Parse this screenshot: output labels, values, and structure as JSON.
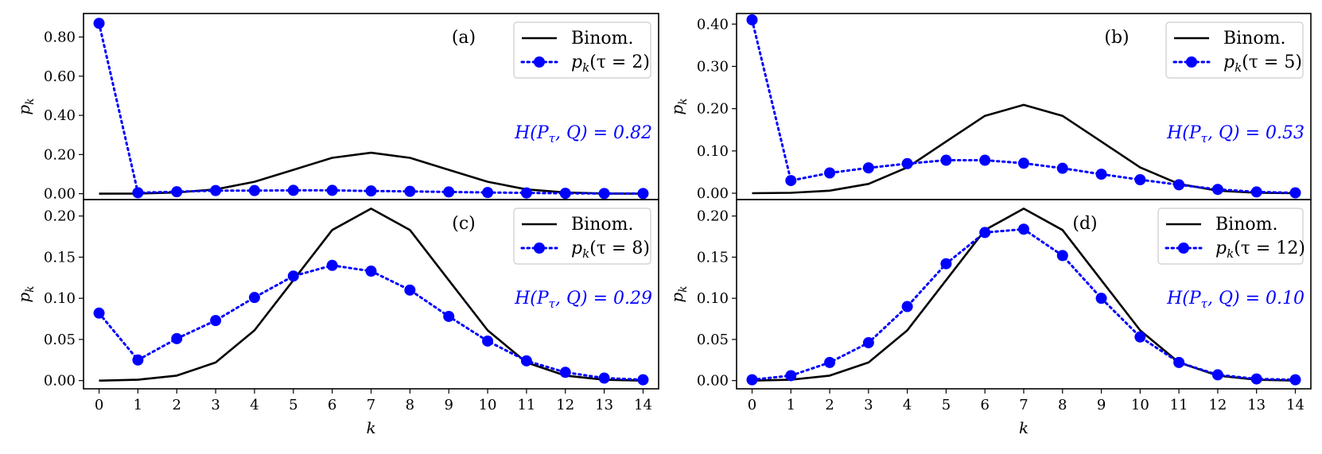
{
  "colors": {
    "binom": "#000000",
    "pk": "#0000ff",
    "axis": "#000000",
    "legend_border": "#cccccc"
  },
  "chart_data": [
    {
      "type": "line",
      "panel_label": "(a)",
      "x": [
        0,
        1,
        2,
        3,
        4,
        5,
        6,
        7,
        8,
        9,
        10,
        11,
        12,
        13,
        14
      ],
      "ylim": [
        -0.03,
        0.92
      ],
      "yticks": [
        0.0,
        0.2,
        0.4,
        0.6,
        0.8
      ],
      "ytick_labels": [
        "0.00",
        "0.20",
        "0.40",
        "0.60",
        "0.80"
      ],
      "xticks": [],
      "ylabel": "p_k",
      "xlabel": "",
      "series": [
        {
          "name": "Binom.",
          "style": "solid",
          "values": [
            0.0,
            0.001,
            0.006,
            0.022,
            0.061,
            0.122,
            0.183,
            0.209,
            0.183,
            0.122,
            0.061,
            0.022,
            0.006,
            0.001,
            0.0
          ]
        },
        {
          "name": "p_k(τ = 2)",
          "style": "dotted-marker",
          "values": [
            0.87,
            0.005,
            0.01,
            0.016,
            0.016,
            0.017,
            0.017,
            0.014,
            0.012,
            0.009,
            0.006,
            0.004,
            0.002,
            0.001,
            0.001
          ]
        }
      ],
      "legend": {
        "binom_label": "Binom.",
        "pk_prefix": "p",
        "pk_sub": "k",
        "pk_arg": "(τ = 2)"
      },
      "entropy": {
        "text": "H(P",
        "sub": "τ",
        "rest": ", Q) = 0.82"
      }
    },
    {
      "type": "line",
      "panel_label": "(b)",
      "x": [
        0,
        1,
        2,
        3,
        4,
        5,
        6,
        7,
        8,
        9,
        10,
        11,
        12,
        13,
        14
      ],
      "ylim": [
        -0.015,
        0.425
      ],
      "yticks": [
        0.0,
        0.1,
        0.2,
        0.3,
        0.4
      ],
      "ytick_labels": [
        "0.00",
        "0.10",
        "0.20",
        "0.30",
        "0.40"
      ],
      "xticks": [],
      "ylabel": "p_k",
      "xlabel": "",
      "series": [
        {
          "name": "Binom.",
          "style": "solid",
          "values": [
            0.0,
            0.001,
            0.006,
            0.022,
            0.061,
            0.122,
            0.183,
            0.209,
            0.183,
            0.122,
            0.061,
            0.022,
            0.006,
            0.001,
            0.0
          ]
        },
        {
          "name": "p_k(τ = 5)",
          "style": "dotted-marker",
          "values": [
            0.41,
            0.03,
            0.048,
            0.06,
            0.07,
            0.078,
            0.078,
            0.071,
            0.059,
            0.045,
            0.032,
            0.02,
            0.009,
            0.003,
            0.001
          ]
        }
      ],
      "legend": {
        "binom_label": "Binom.",
        "pk_prefix": "p",
        "pk_sub": "k",
        "pk_arg": "(τ = 5)"
      },
      "entropy": {
        "text": "H(P",
        "sub": "τ",
        "rest": ", Q) = 0.53"
      }
    },
    {
      "type": "line",
      "panel_label": "(c)",
      "x": [
        0,
        1,
        2,
        3,
        4,
        5,
        6,
        7,
        8,
        9,
        10,
        11,
        12,
        13,
        14
      ],
      "ylim": [
        -0.01,
        0.22
      ],
      "yticks": [
        0.0,
        0.05,
        0.1,
        0.15,
        0.2
      ],
      "ytick_labels": [
        "0.00",
        "0.05",
        "0.10",
        "0.15",
        "0.20"
      ],
      "xticks": [
        0,
        1,
        2,
        3,
        4,
        5,
        6,
        7,
        8,
        9,
        10,
        11,
        12,
        13,
        14
      ],
      "ylabel": "p_k",
      "xlabel": "k",
      "series": [
        {
          "name": "Binom.",
          "style": "solid",
          "values": [
            0.0,
            0.001,
            0.006,
            0.022,
            0.061,
            0.122,
            0.183,
            0.209,
            0.183,
            0.122,
            0.061,
            0.022,
            0.006,
            0.001,
            0.0
          ]
        },
        {
          "name": "p_k(τ = 8)",
          "style": "dotted-marker",
          "values": [
            0.082,
            0.025,
            0.051,
            0.073,
            0.101,
            0.127,
            0.14,
            0.133,
            0.11,
            0.078,
            0.048,
            0.024,
            0.01,
            0.003,
            0.001
          ]
        }
      ],
      "legend": {
        "binom_label": "Binom.",
        "pk_prefix": "p",
        "pk_sub": "k",
        "pk_arg": "(τ = 8)"
      },
      "entropy": {
        "text": "H(P",
        "sub": "τ",
        "rest": ", Q) = 0.29"
      }
    },
    {
      "type": "line",
      "panel_label": "(d)",
      "x": [
        0,
        1,
        2,
        3,
        4,
        5,
        6,
        7,
        8,
        9,
        10,
        11,
        12,
        13,
        14
      ],
      "ylim": [
        -0.01,
        0.22
      ],
      "yticks": [
        0.0,
        0.05,
        0.1,
        0.15,
        0.2
      ],
      "ytick_labels": [
        "0.00",
        "0.05",
        "0.10",
        "0.15",
        "0.20"
      ],
      "xticks": [
        0,
        1,
        2,
        3,
        4,
        5,
        6,
        7,
        8,
        9,
        10,
        11,
        12,
        13,
        14
      ],
      "ylabel": "p_k",
      "xlabel": "k",
      "series": [
        {
          "name": "Binom.",
          "style": "solid",
          "values": [
            0.0,
            0.001,
            0.006,
            0.022,
            0.061,
            0.122,
            0.183,
            0.209,
            0.183,
            0.122,
            0.061,
            0.022,
            0.006,
            0.001,
            0.0
          ]
        },
        {
          "name": "p_k(τ = 12)",
          "style": "dotted-marker",
          "values": [
            0.001,
            0.006,
            0.022,
            0.046,
            0.09,
            0.142,
            0.18,
            0.184,
            0.152,
            0.1,
            0.053,
            0.022,
            0.007,
            0.002,
            0.001
          ]
        }
      ],
      "legend": {
        "binom_label": "Binom.",
        "pk_prefix": "p",
        "pk_sub": "k",
        "pk_arg": "(τ = 12)"
      },
      "entropy": {
        "text": "H(P",
        "sub": "τ",
        "rest": ", Q) = 0.10"
      }
    }
  ]
}
